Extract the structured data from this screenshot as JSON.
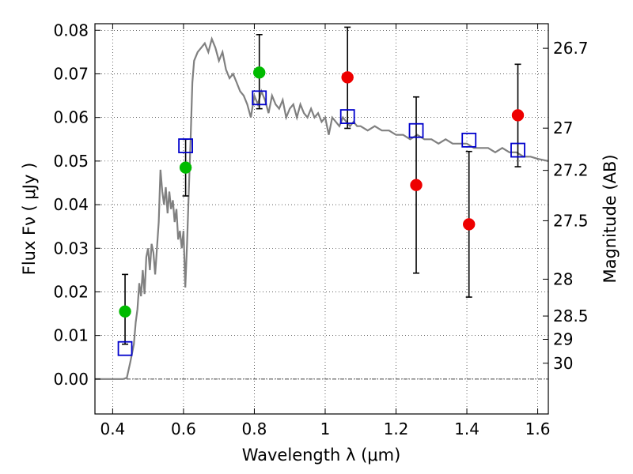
{
  "chart_data": {
    "type": "scatter",
    "xlabel": "Wavelength  λ (μm)",
    "ylabel_left": "Flux  Fν ( μJy )",
    "ylabel_right": "Magnitude (AB)",
    "xlim": [
      0.35,
      1.63
    ],
    "ylim": [
      -0.008,
      0.0815
    ],
    "grid": true,
    "x_ticks": [
      {
        "value": 0.4,
        "label": "0.4"
      },
      {
        "value": 0.6,
        "label": "0.6"
      },
      {
        "value": 0.8,
        "label": "0.8"
      },
      {
        "value": 1.0,
        "label": "1"
      },
      {
        "value": 1.2,
        "label": "1.2"
      },
      {
        "value": 1.4,
        "label": "1.4"
      },
      {
        "value": 1.6,
        "label": "1.6"
      }
    ],
    "y_ticks": [
      {
        "value": 0.0,
        "label": "0.00"
      },
      {
        "value": 0.01,
        "label": "0.01"
      },
      {
        "value": 0.02,
        "label": "0.02"
      },
      {
        "value": 0.03,
        "label": "0.03"
      },
      {
        "value": 0.04,
        "label": "0.04"
      },
      {
        "value": 0.05,
        "label": "0.05"
      },
      {
        "value": 0.06,
        "label": "0.06"
      },
      {
        "value": 0.07,
        "label": "0.07"
      },
      {
        "value": 0.08,
        "label": "0.08"
      }
    ],
    "mag_ticks": [
      {
        "mag": 26.7,
        "label": "26.7"
      },
      {
        "mag": 27.0,
        "label": "27"
      },
      {
        "mag": 27.2,
        "label": "27.2"
      },
      {
        "mag": 27.5,
        "label": "27.5"
      },
      {
        "mag": 28.0,
        "label": "28"
      },
      {
        "mag": 28.5,
        "label": "28.5"
      },
      {
        "mag": 29.0,
        "label": "29"
      },
      {
        "mag": 30.0,
        "label": "30"
      }
    ],
    "model_spectrum": {
      "color": "#808080",
      "points": [
        [
          0.35,
          0.0
        ],
        [
          0.38,
          0.0
        ],
        [
          0.4,
          0.0
        ],
        [
          0.43,
          0.0
        ],
        [
          0.44,
          0.0003
        ],
        [
          0.45,
          0.004
        ],
        [
          0.46,
          0.008
        ],
        [
          0.465,
          0.013
        ],
        [
          0.47,
          0.016
        ],
        [
          0.475,
          0.022
        ],
        [
          0.48,
          0.019
        ],
        [
          0.485,
          0.025
        ],
        [
          0.49,
          0.0195
        ],
        [
          0.495,
          0.028
        ],
        [
          0.5,
          0.03
        ],
        [
          0.505,
          0.025
        ],
        [
          0.51,
          0.031
        ],
        [
          0.515,
          0.029
        ],
        [
          0.52,
          0.024
        ],
        [
          0.53,
          0.036
        ],
        [
          0.535,
          0.048
        ],
        [
          0.54,
          0.043
        ],
        [
          0.545,
          0.04
        ],
        [
          0.55,
          0.044
        ],
        [
          0.555,
          0.038
        ],
        [
          0.56,
          0.043
        ],
        [
          0.565,
          0.039
        ],
        [
          0.57,
          0.041
        ],
        [
          0.575,
          0.036
        ],
        [
          0.58,
          0.039
        ],
        [
          0.585,
          0.032
        ],
        [
          0.59,
          0.034
        ],
        [
          0.595,
          0.03
        ],
        [
          0.6,
          0.034
        ],
        [
          0.605,
          0.021
        ],
        [
          0.61,
          0.031
        ],
        [
          0.615,
          0.043
        ],
        [
          0.62,
          0.055
        ],
        [
          0.625,
          0.068
        ],
        [
          0.63,
          0.073
        ],
        [
          0.64,
          0.075
        ],
        [
          0.65,
          0.076
        ],
        [
          0.66,
          0.077
        ],
        [
          0.67,
          0.075
        ],
        [
          0.68,
          0.078
        ],
        [
          0.69,
          0.076
        ],
        [
          0.7,
          0.073
        ],
        [
          0.71,
          0.075
        ],
        [
          0.72,
          0.071
        ],
        [
          0.73,
          0.069
        ],
        [
          0.74,
          0.07
        ],
        [
          0.75,
          0.068
        ],
        [
          0.76,
          0.066
        ],
        [
          0.77,
          0.065
        ],
        [
          0.78,
          0.063
        ],
        [
          0.79,
          0.06
        ],
        [
          0.8,
          0.065
        ],
        [
          0.81,
          0.063
        ],
        [
          0.82,
          0.066
        ],
        [
          0.83,
          0.064
        ],
        [
          0.84,
          0.061
        ],
        [
          0.85,
          0.065
        ],
        [
          0.86,
          0.063
        ],
        [
          0.87,
          0.062
        ],
        [
          0.88,
          0.064
        ],
        [
          0.89,
          0.06
        ],
        [
          0.9,
          0.062
        ],
        [
          0.91,
          0.063
        ],
        [
          0.92,
          0.06
        ],
        [
          0.93,
          0.063
        ],
        [
          0.94,
          0.061
        ],
        [
          0.95,
          0.06
        ],
        [
          0.96,
          0.062
        ],
        [
          0.97,
          0.06
        ],
        [
          0.98,
          0.061
        ],
        [
          0.99,
          0.059
        ],
        [
          1.0,
          0.06
        ],
        [
          1.01,
          0.056
        ],
        [
          1.02,
          0.06
        ],
        [
          1.03,
          0.059
        ],
        [
          1.04,
          0.058
        ],
        [
          1.05,
          0.06
        ],
        [
          1.06,
          0.059
        ],
        [
          1.07,
          0.058
        ],
        [
          1.08,
          0.059
        ],
        [
          1.09,
          0.058
        ],
        [
          1.1,
          0.058
        ],
        [
          1.12,
          0.057
        ],
        [
          1.14,
          0.058
        ],
        [
          1.16,
          0.057
        ],
        [
          1.18,
          0.057
        ],
        [
          1.2,
          0.056
        ],
        [
          1.22,
          0.056
        ],
        [
          1.24,
          0.055
        ],
        [
          1.26,
          0.056
        ],
        [
          1.28,
          0.055
        ],
        [
          1.3,
          0.055
        ],
        [
          1.32,
          0.054
        ],
        [
          1.34,
          0.055
        ],
        [
          1.36,
          0.054
        ],
        [
          1.38,
          0.054
        ],
        [
          1.4,
          0.054
        ],
        [
          1.42,
          0.053
        ],
        [
          1.44,
          0.053
        ],
        [
          1.46,
          0.053
        ],
        [
          1.48,
          0.052
        ],
        [
          1.5,
          0.053
        ],
        [
          1.52,
          0.052
        ],
        [
          1.54,
          0.052
        ],
        [
          1.56,
          0.051
        ],
        [
          1.58,
          0.051
        ],
        [
          1.6,
          0.0505
        ],
        [
          1.63,
          0.05
        ]
      ]
    },
    "model_photometry": {
      "marker": "open-square",
      "color": "#0000cc",
      "points": [
        {
          "x": 0.435,
          "y": 0.007
        },
        {
          "x": 0.606,
          "y": 0.0535
        },
        {
          "x": 0.814,
          "y": 0.0645
        },
        {
          "x": 1.063,
          "y": 0.0602
        },
        {
          "x": 1.257,
          "y": 0.057
        },
        {
          "x": 1.406,
          "y": 0.0548
        },
        {
          "x": 1.544,
          "y": 0.0525
        }
      ]
    },
    "observed_hst_acs": {
      "marker": "filled-circle",
      "color": "#00bb00",
      "points": [
        {
          "x": 0.435,
          "y": 0.0155,
          "yerr_low": 0.008,
          "yerr_high": 0.024
        },
        {
          "x": 0.606,
          "y": 0.0485,
          "yerr_low": 0.042,
          "yerr_high": 0.055
        },
        {
          "x": 0.814,
          "y": 0.0703,
          "yerr_low": 0.062,
          "yerr_high": 0.079
        }
      ]
    },
    "observed_hst_wfc3": {
      "marker": "filled-circle",
      "color": "#ee0000",
      "points": [
        {
          "x": 1.063,
          "y": 0.0692,
          "yerr_low": 0.0575,
          "yerr_high": 0.0807
        },
        {
          "x": 1.257,
          "y": 0.0445,
          "yerr_low": 0.0243,
          "yerr_high": 0.0647
        },
        {
          "x": 1.406,
          "y": 0.0355,
          "yerr_low": 0.0188,
          "yerr_high": 0.0522
        },
        {
          "x": 1.544,
          "y": 0.0605,
          "yerr_low": 0.0487,
          "yerr_high": 0.0722
        }
      ]
    }
  }
}
